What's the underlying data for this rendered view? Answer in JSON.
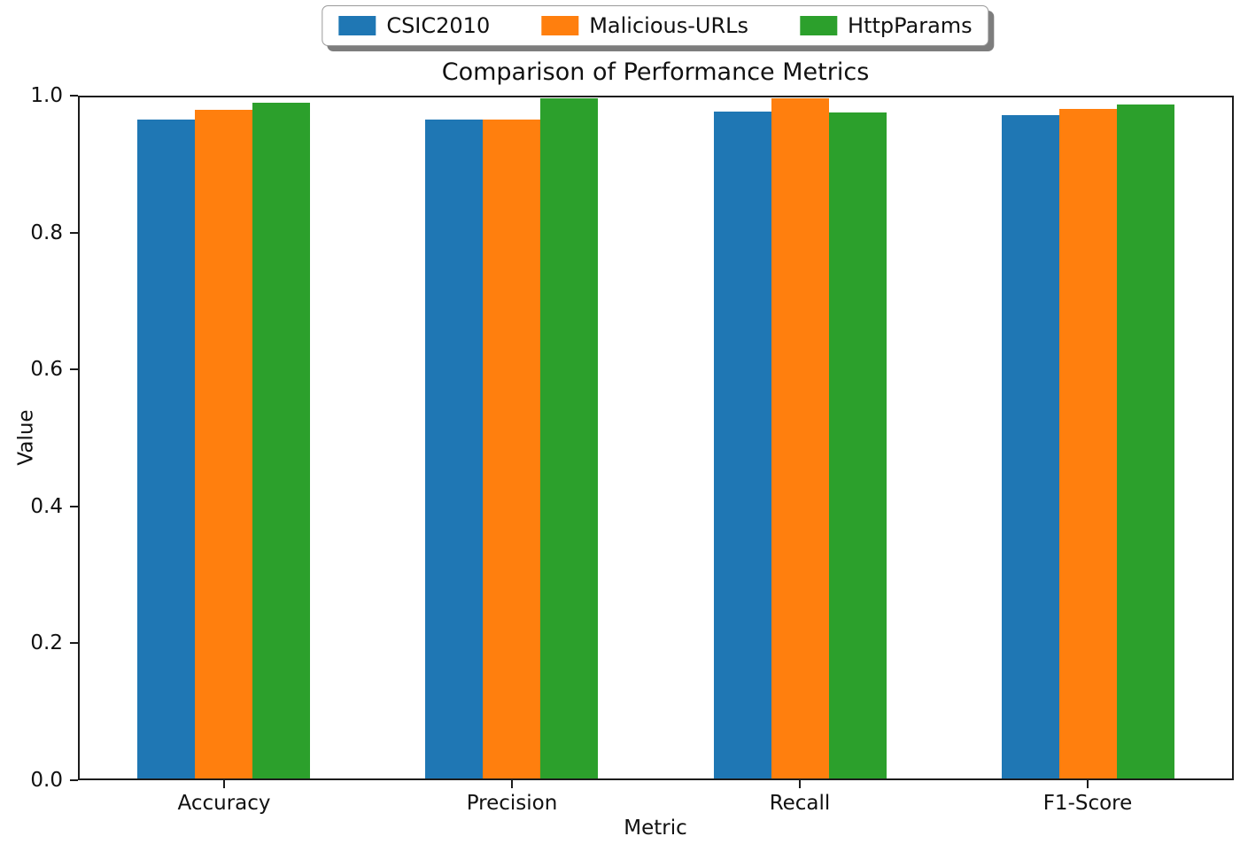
{
  "chart_data": {
    "type": "bar",
    "title": "Comparison of Performance Metrics",
    "xlabel": "Metric",
    "ylabel": "Value",
    "categories": [
      "Accuracy",
      "Precision",
      "Recall",
      "F1-Score"
    ],
    "series": [
      {
        "name": "CSIC2010",
        "color": "#1f77b4",
        "values": [
          0.967,
          0.968,
          0.979,
          0.974
        ]
      },
      {
        "name": "Malicious-URLs",
        "color": "#ff7f0e",
        "values": [
          0.982,
          0.968,
          0.999,
          0.983
        ]
      },
      {
        "name": "HttpParams",
        "color": "#2ca02c",
        "values": [
          0.992,
          0.999,
          0.978,
          0.99
        ]
      }
    ],
    "ylim": [
      0.0,
      1.0
    ],
    "yticks": [
      "0.0",
      "0.2",
      "0.4",
      "0.6",
      "0.8",
      "1.0"
    ],
    "grid": false,
    "legend_position": "top-center",
    "axis_color": "#1c1c1c",
    "text_color": "#111111",
    "background_color": "#ffffff"
  }
}
